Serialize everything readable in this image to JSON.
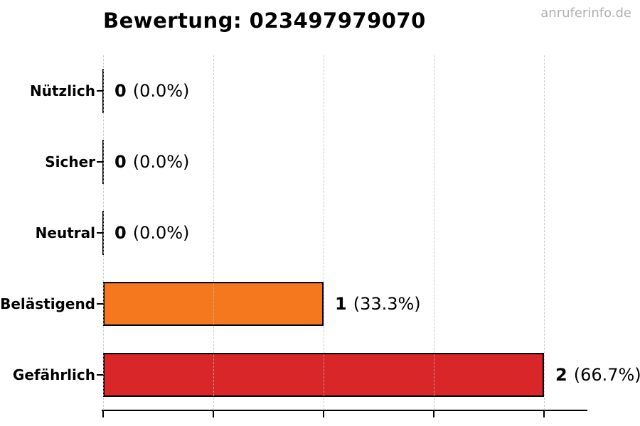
{
  "header": {
    "title": "Bewertung: 023497979070",
    "watermark": "anruferinfo.de"
  },
  "chart_data": {
    "type": "bar",
    "orientation": "horizontal",
    "title": "Bewertung: 023497979070",
    "categories": [
      "Nützlich",
      "Sicher",
      "Neutral",
      "Belästigend",
      "Gefährlich"
    ],
    "values": [
      0,
      0,
      0,
      1,
      2
    ],
    "value_labels": [
      {
        "count": "0",
        "percent": "(0.0%)"
      },
      {
        "count": "0",
        "percent": "(0.0%)"
      },
      {
        "count": "0",
        "percent": "(0.0%)"
      },
      {
        "count": "1",
        "percent": "(33.3%)"
      },
      {
        "count": "2",
        "percent": "(66.7%)"
      }
    ],
    "bar_colors": [
      "#000000",
      "#000000",
      "#000000",
      "#f5781f",
      "#d92729"
    ],
    "xlabel": "",
    "ylabel": "",
    "xlim": [
      0,
      2.19
    ],
    "x_ticks": [
      0,
      0.5,
      1.0,
      1.5,
      2.0
    ],
    "x_tick_labels_visible": false,
    "grid": "vertical-dashed",
    "legend": "none",
    "colors": {
      "bar_harassing": "#f5781f",
      "bar_dangerous": "#d92729",
      "axis": "#000000",
      "grid": "#b9b9b9",
      "watermark": "#b0b0b0"
    }
  }
}
